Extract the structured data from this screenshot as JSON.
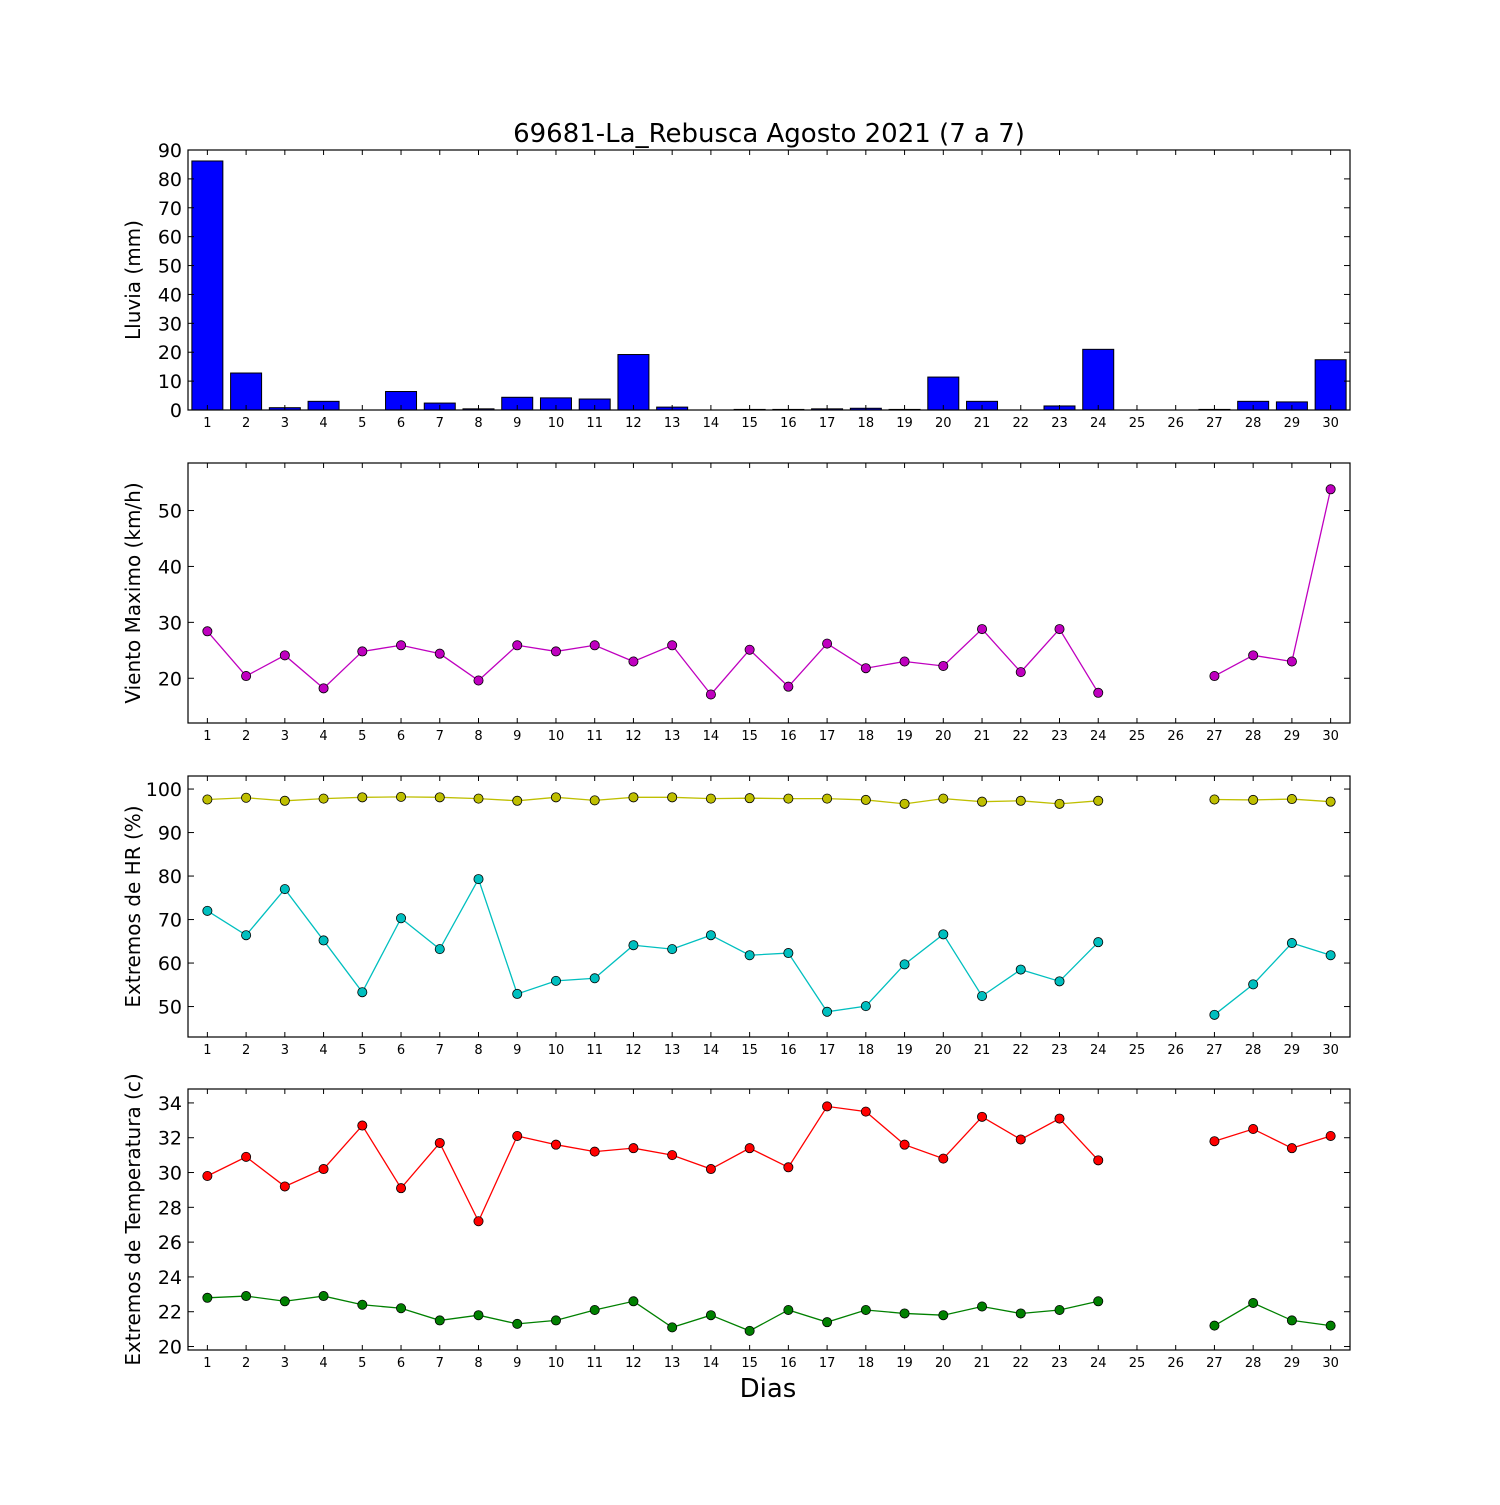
{
  "chart_data": [
    {
      "type": "bar",
      "title": "69681-La_Rebusca Agosto 2021  (7 a 7)",
      "ylabel": "Lluvia (mm)",
      "xlabel": "",
      "ylim": [
        0,
        90
      ],
      "yticks": [
        0,
        10,
        20,
        30,
        40,
        50,
        60,
        70,
        80,
        90
      ],
      "categories": [
        "1",
        "2",
        "3",
        "4",
        "5",
        "6",
        "7",
        "8",
        "9",
        "10",
        "11",
        "12",
        "13",
        "14",
        "15",
        "16",
        "17",
        "18",
        "19",
        "20",
        "21",
        "22",
        "23",
        "24",
        "25",
        "26",
        "27",
        "28",
        "29",
        "30"
      ],
      "values": [
        86.2,
        12.8,
        0.8,
        3.0,
        0,
        6.4,
        2.4,
        0.4,
        4.4,
        4.2,
        3.8,
        19.2,
        1.0,
        0,
        0.2,
        0.2,
        0.4,
        0.6,
        0.2,
        11.4,
        3.0,
        0,
        1.4,
        21.0,
        0,
        0,
        0.2,
        3.0,
        2.8,
        17.4
      ],
      "color": "#0000ff"
    },
    {
      "type": "line",
      "ylabel": "Viento Maximo (km/h)",
      "ylim": [
        12,
        58.5
      ],
      "yticks": [
        20,
        30,
        40,
        50
      ],
      "x": [
        1,
        2,
        3,
        4,
        5,
        6,
        7,
        8,
        9,
        10,
        11,
        12,
        13,
        14,
        15,
        16,
        17,
        18,
        19,
        20,
        21,
        22,
        23,
        24,
        25,
        26,
        27,
        28,
        29,
        30
      ],
      "series": [
        {
          "values": [
            28.4,
            20.4,
            24.1,
            18.2,
            24.8,
            25.9,
            24.4,
            19.6,
            25.9,
            24.8,
            25.9,
            23.0,
            25.9,
            17.1,
            25.1,
            18.5,
            26.2,
            21.8,
            23.0,
            22.2,
            28.8,
            21.1,
            28.8,
            17.4,
            null,
            null,
            20.4,
            24.1,
            23.0,
            53.8
          ],
          "color": "#bf00bf"
        }
      ]
    },
    {
      "type": "line",
      "ylabel": "Extremos de HR (%)",
      "ylim": [
        43,
        103
      ],
      "yticks": [
        50,
        60,
        70,
        80,
        90,
        100
      ],
      "x": [
        1,
        2,
        3,
        4,
        5,
        6,
        7,
        8,
        9,
        10,
        11,
        12,
        13,
        14,
        15,
        16,
        17,
        18,
        19,
        20,
        21,
        22,
        23,
        24,
        25,
        26,
        27,
        28,
        29,
        30
      ],
      "series": [
        {
          "values": [
            97.6,
            98.0,
            97.3,
            97.8,
            98.1,
            98.2,
            98.1,
            97.8,
            97.3,
            98.1,
            97.4,
            98.1,
            98.1,
            97.8,
            97.9,
            97.8,
            97.8,
            97.5,
            96.6,
            97.8,
            97.1,
            97.3,
            96.6,
            97.3,
            null,
            null,
            97.6,
            97.5,
            97.7,
            97.1
          ],
          "color": "#bfbf00"
        },
        {
          "values": [
            72.0,
            66.4,
            77.0,
            65.2,
            53.3,
            70.3,
            63.2,
            79.3,
            52.9,
            55.9,
            56.5,
            64.1,
            63.2,
            66.4,
            61.8,
            62.3,
            48.8,
            50.1,
            59.7,
            66.6,
            52.4,
            58.5,
            55.8,
            64.8,
            null,
            null,
            48.1,
            55.1,
            64.6,
            61.8
          ],
          "color": "#00bfbf"
        }
      ]
    },
    {
      "type": "line",
      "ylabel": "Extremos de Temperatura (c)",
      "xlabel": "Dias",
      "ylim": [
        19.8,
        34.8
      ],
      "yticks": [
        20,
        22,
        24,
        26,
        28,
        30,
        32,
        34
      ],
      "x": [
        1,
        2,
        3,
        4,
        5,
        6,
        7,
        8,
        9,
        10,
        11,
        12,
        13,
        14,
        15,
        16,
        17,
        18,
        19,
        20,
        21,
        22,
        23,
        24,
        25,
        26,
        27,
        28,
        29,
        30
      ],
      "series": [
        {
          "values": [
            29.8,
            30.9,
            29.2,
            30.2,
            32.7,
            29.1,
            31.7,
            27.2,
            32.1,
            31.6,
            31.2,
            31.4,
            31.0,
            30.2,
            31.4,
            30.3,
            33.8,
            33.5,
            31.6,
            30.8,
            33.2,
            31.9,
            33.1,
            30.7,
            null,
            null,
            31.8,
            32.5,
            31.4,
            32.1
          ],
          "color": "#ff0000"
        },
        {
          "values": [
            22.8,
            22.9,
            22.6,
            22.9,
            22.4,
            22.2,
            21.5,
            21.8,
            21.3,
            21.5,
            22.1,
            22.6,
            21.1,
            21.8,
            20.9,
            22.1,
            21.4,
            22.1,
            21.9,
            21.8,
            22.3,
            21.9,
            22.1,
            22.6,
            null,
            null,
            21.2,
            22.5,
            21.5,
            21.2
          ],
          "color": "#008000"
        }
      ]
    }
  ]
}
